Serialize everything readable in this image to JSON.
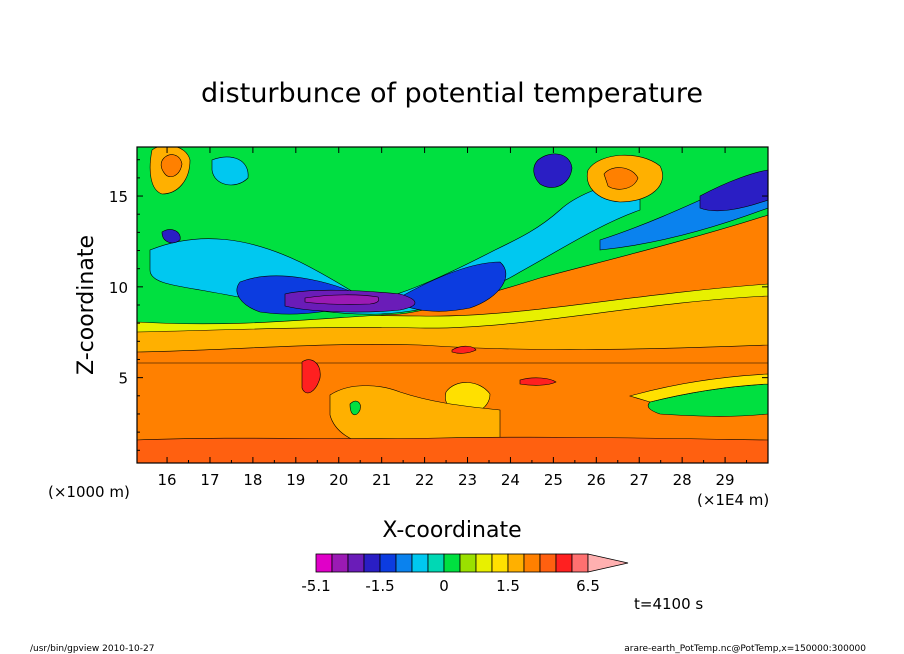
{
  "chart_data": {
    "type": "heatmap",
    "title": "disturbunce of potential temperature",
    "xlabel": "X-coordinate",
    "ylabel": "Z-coordinate",
    "x_unit_left": "(×1000 m)",
    "x_unit_right": "(×1E4 m)",
    "xlim": [
      15.3,
      30.0
    ],
    "ylim": [
      0.3,
      17.7
    ],
    "x_ticks": [
      "16",
      "17",
      "18",
      "19",
      "20",
      "21",
      "22",
      "23",
      "24",
      "25",
      "26",
      "27",
      "28",
      "29"
    ],
    "y_ticks": [
      "5",
      "10",
      "15"
    ],
    "colorbar": {
      "levels": [
        -5.1,
        -4.1,
        -3.1,
        -2.1,
        -1.5,
        -1.1,
        -0.7,
        -0.3,
        0,
        0.3,
        0.7,
        1.1,
        1.5,
        2.5,
        3.5,
        4.5,
        5.5,
        6.5
      ],
      "colors": [
        "#e000c8",
        "#9b1ab4",
        "#6a1cb8",
        "#2a1ec4",
        "#0c3ce0",
        "#0a82ee",
        "#00c8f0",
        "#00d8b4",
        "#00e040",
        "#9ae000",
        "#e8f000",
        "#ffe000",
        "#ffb000",
        "#ff8000",
        "#ff6010",
        "#ff2020",
        "#ff7070",
        "#ffb0b0"
      ],
      "tick_labels": [
        "-5.1",
        "-1.5",
        "0",
        "1.5",
        "6.5"
      ],
      "tick_values": [
        -5.1,
        -1.5,
        0,
        1.5,
        6.5
      ]
    },
    "time_label": "t=4100 s",
    "grid": false,
    "legend": "bottom colorbar"
  },
  "footer": {
    "left": "/usr/bin/gpview   2010-10-27",
    "right": "arare-earth_PotTemp.nc@PotTemp,x=150000:300000"
  }
}
